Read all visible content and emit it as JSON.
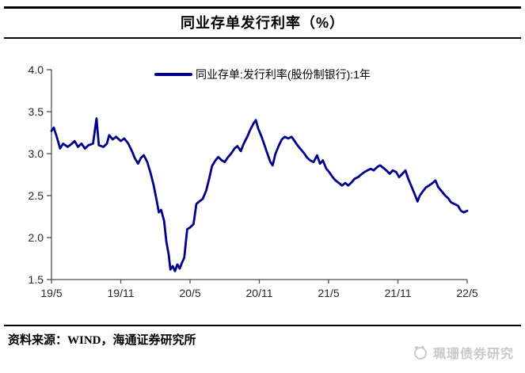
{
  "header": {
    "title": "同业存单发行利率（%）"
  },
  "legend": {
    "label": "同业存单:发行利率(股份制银行):1年"
  },
  "footer": {
    "source": "资料来源：WIND，海通证券研究所",
    "watermark": "珮珊债券研究"
  },
  "chart_data": {
    "type": "line",
    "title": "同业存单发行利率（%）",
    "xlabel": "",
    "ylabel": "",
    "ylim": [
      1.5,
      4.0
    ],
    "yticks": [
      4.0,
      3.5,
      3.0,
      2.5,
      2.0,
      1.5
    ],
    "grid": false,
    "legend_position": "top-center",
    "line_color": "#00008B",
    "axis_color": "#4d4d4d",
    "xlim_months": [
      0,
      36
    ],
    "xticks": [
      {
        "t": 0,
        "label": "19/5"
      },
      {
        "t": 6,
        "label": "19/11"
      },
      {
        "t": 12,
        "label": "20/5"
      },
      {
        "t": 18,
        "label": "20/11"
      },
      {
        "t": 24,
        "label": "21/5"
      },
      {
        "t": 30,
        "label": "21/11"
      },
      {
        "t": 36,
        "label": "22/5"
      }
    ],
    "series": [
      {
        "name": "同业存单:发行利率(股份制银行):1年",
        "points": [
          [
            0,
            3.27
          ],
          [
            0.2,
            3.31
          ],
          [
            0.5,
            3.18
          ],
          [
            0.75,
            3.06
          ],
          [
            1.0,
            3.12
          ],
          [
            1.4,
            3.08
          ],
          [
            1.7,
            3.11
          ],
          [
            2.0,
            3.15
          ],
          [
            2.3,
            3.08
          ],
          [
            2.6,
            3.12
          ],
          [
            2.9,
            3.06
          ],
          [
            3.2,
            3.1
          ],
          [
            3.6,
            3.12
          ],
          [
            3.9,
            3.42
          ],
          [
            4.1,
            3.1
          ],
          [
            4.5,
            3.08
          ],
          [
            4.8,
            3.12
          ],
          [
            5.0,
            3.22
          ],
          [
            5.3,
            3.17
          ],
          [
            5.6,
            3.2
          ],
          [
            6.0,
            3.15
          ],
          [
            6.3,
            3.18
          ],
          [
            6.65,
            3.12
          ],
          [
            7.0,
            3.02
          ],
          [
            7.2,
            2.95
          ],
          [
            7.5,
            2.88
          ],
          [
            7.75,
            2.95
          ],
          [
            8.0,
            2.98
          ],
          [
            8.3,
            2.9
          ],
          [
            8.6,
            2.76
          ],
          [
            8.85,
            2.62
          ],
          [
            9.1,
            2.45
          ],
          [
            9.3,
            2.3
          ],
          [
            9.5,
            2.33
          ],
          [
            9.75,
            2.2
          ],
          [
            9.95,
            1.95
          ],
          [
            10.15,
            1.8
          ],
          [
            10.3,
            1.62
          ],
          [
            10.5,
            1.66
          ],
          [
            10.7,
            1.6
          ],
          [
            10.9,
            1.68
          ],
          [
            11.1,
            1.63
          ],
          [
            11.3,
            1.7
          ],
          [
            11.5,
            1.76
          ],
          [
            11.75,
            2.1
          ],
          [
            12.0,
            2.12
          ],
          [
            12.3,
            2.16
          ],
          [
            12.55,
            2.4
          ],
          [
            12.8,
            2.43
          ],
          [
            13.1,
            2.46
          ],
          [
            13.4,
            2.56
          ],
          [
            13.65,
            2.7
          ],
          [
            13.9,
            2.85
          ],
          [
            14.2,
            2.92
          ],
          [
            14.45,
            2.96
          ],
          [
            14.75,
            2.92
          ],
          [
            15.0,
            2.9
          ],
          [
            15.3,
            2.96
          ],
          [
            15.55,
            3.0
          ],
          [
            15.85,
            3.06
          ],
          [
            16.1,
            3.09
          ],
          [
            16.4,
            3.03
          ],
          [
            16.65,
            3.12
          ],
          [
            16.95,
            3.2
          ],
          [
            17.2,
            3.28
          ],
          [
            17.5,
            3.36
          ],
          [
            17.7,
            3.4
          ],
          [
            17.9,
            3.3
          ],
          [
            18.2,
            3.2
          ],
          [
            18.45,
            3.1
          ],
          [
            18.7,
            3.0
          ],
          [
            18.95,
            2.9
          ],
          [
            19.15,
            2.86
          ],
          [
            19.4,
            3.0
          ],
          [
            19.7,
            3.1
          ],
          [
            19.95,
            3.17
          ],
          [
            20.2,
            3.2
          ],
          [
            20.5,
            3.18
          ],
          [
            20.8,
            3.2
          ],
          [
            21.05,
            3.15
          ],
          [
            21.3,
            3.1
          ],
          [
            21.6,
            3.05
          ],
          [
            21.9,
            3.0
          ],
          [
            22.15,
            2.95
          ],
          [
            22.4,
            2.92
          ],
          [
            22.7,
            2.9
          ],
          [
            23.0,
            2.98
          ],
          [
            23.25,
            2.88
          ],
          [
            23.5,
            2.92
          ],
          [
            23.8,
            2.82
          ],
          [
            24.05,
            2.78
          ],
          [
            24.35,
            2.72
          ],
          [
            24.6,
            2.68
          ],
          [
            24.9,
            2.65
          ],
          [
            25.15,
            2.62
          ],
          [
            25.45,
            2.65
          ],
          [
            25.7,
            2.62
          ],
          [
            26.0,
            2.66
          ],
          [
            26.25,
            2.7
          ],
          [
            26.55,
            2.72
          ],
          [
            26.8,
            2.75
          ],
          [
            27.1,
            2.78
          ],
          [
            27.35,
            2.8
          ],
          [
            27.65,
            2.82
          ],
          [
            27.9,
            2.8
          ],
          [
            28.2,
            2.84
          ],
          [
            28.45,
            2.86
          ],
          [
            28.75,
            2.83
          ],
          [
            29.0,
            2.8
          ],
          [
            29.3,
            2.76
          ],
          [
            29.55,
            2.8
          ],
          [
            29.85,
            2.78
          ],
          [
            30.1,
            2.72
          ],
          [
            30.4,
            2.76
          ],
          [
            30.65,
            2.8
          ],
          [
            30.9,
            2.7
          ],
          [
            31.2,
            2.6
          ],
          [
            31.5,
            2.5
          ],
          [
            31.7,
            2.43
          ],
          [
            31.9,
            2.5
          ],
          [
            32.15,
            2.55
          ],
          [
            32.45,
            2.6
          ],
          [
            32.7,
            2.62
          ],
          [
            33.0,
            2.65
          ],
          [
            33.25,
            2.68
          ],
          [
            33.5,
            2.6
          ],
          [
            33.8,
            2.55
          ],
          [
            34.1,
            2.5
          ],
          [
            34.35,
            2.47
          ],
          [
            34.6,
            2.42
          ],
          [
            34.9,
            2.4
          ],
          [
            35.2,
            2.38
          ],
          [
            35.45,
            2.32
          ],
          [
            35.7,
            2.3
          ],
          [
            36.0,
            2.32
          ]
        ]
      }
    ]
  }
}
